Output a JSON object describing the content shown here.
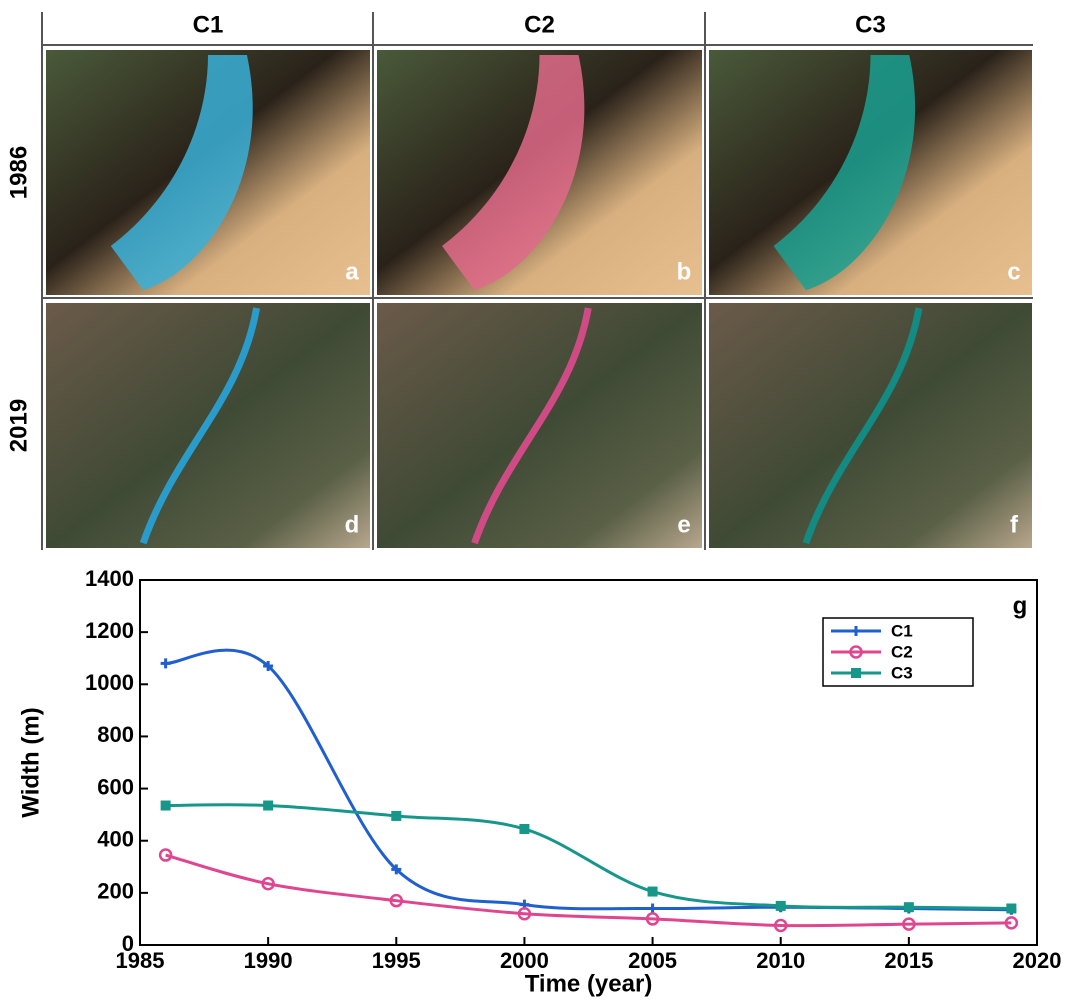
{
  "panels": {
    "columns": [
      "C1",
      "C2",
      "C3"
    ],
    "rows": [
      "1986",
      "2019"
    ],
    "letters": [
      "a",
      "b",
      "c",
      "d",
      "e",
      "f"
    ]
  },
  "chart_data": {
    "type": "line",
    "panel_letter": "g",
    "x_label": "Time (year)",
    "y_label": "Width (m)",
    "x": [
      1986,
      1990,
      1995,
      2000,
      2005,
      2010,
      2015,
      2019
    ],
    "series": [
      {
        "name": "C1",
        "color": "#1f5fd0",
        "marker": "plus",
        "values": [
          1080,
          1070,
          290,
          155,
          140,
          145,
          140,
          135
        ]
      },
      {
        "name": "C2",
        "color": "#e0458f",
        "marker": "circle",
        "values": [
          345,
          235,
          170,
          120,
          100,
          75,
          80,
          85
        ]
      },
      {
        "name": "C3",
        "color": "#17968a",
        "marker": "square",
        "values": [
          535,
          535,
          495,
          445,
          205,
          150,
          145,
          140
        ]
      }
    ],
    "xlim": [
      1985,
      2020
    ],
    "xticks": [
      1985,
      1990,
      1995,
      2000,
      2005,
      2010,
      2015,
      2020
    ],
    "ylim": [
      0,
      1400
    ],
    "yticks": [
      0,
      200,
      400,
      600,
      800,
      1000,
      1200,
      1400
    ],
    "smooth": true,
    "legend": "upper right"
  }
}
